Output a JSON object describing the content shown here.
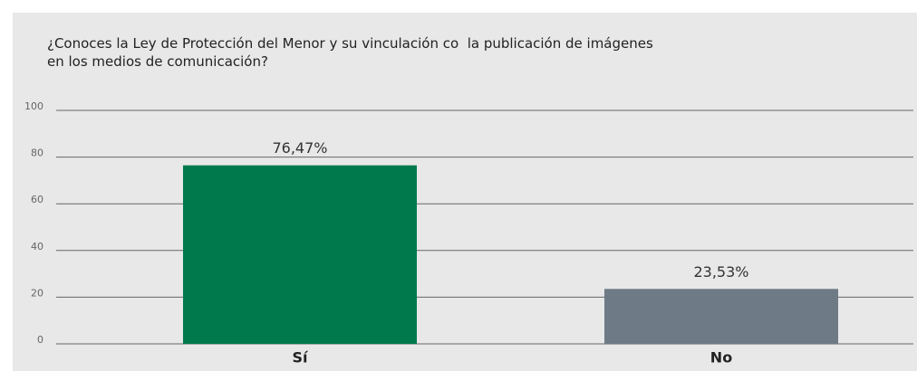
{
  "chart_data": {
    "type": "bar",
    "title": "¿Conoces la Ley de Protección del Menor y su vinculación co  la publicación de imágenes en los medios de comunicación?",
    "categories": [
      "Sí",
      "No"
    ],
    "values": [
      76.47,
      23.53
    ],
    "value_labels": [
      "76,47%",
      "23,53%"
    ],
    "colors": [
      "#007a4d",
      "#6e7b86"
    ],
    "ylim": [
      0,
      100
    ],
    "yticks": [
      0,
      20,
      40,
      60,
      80,
      100
    ],
    "grid": true
  }
}
